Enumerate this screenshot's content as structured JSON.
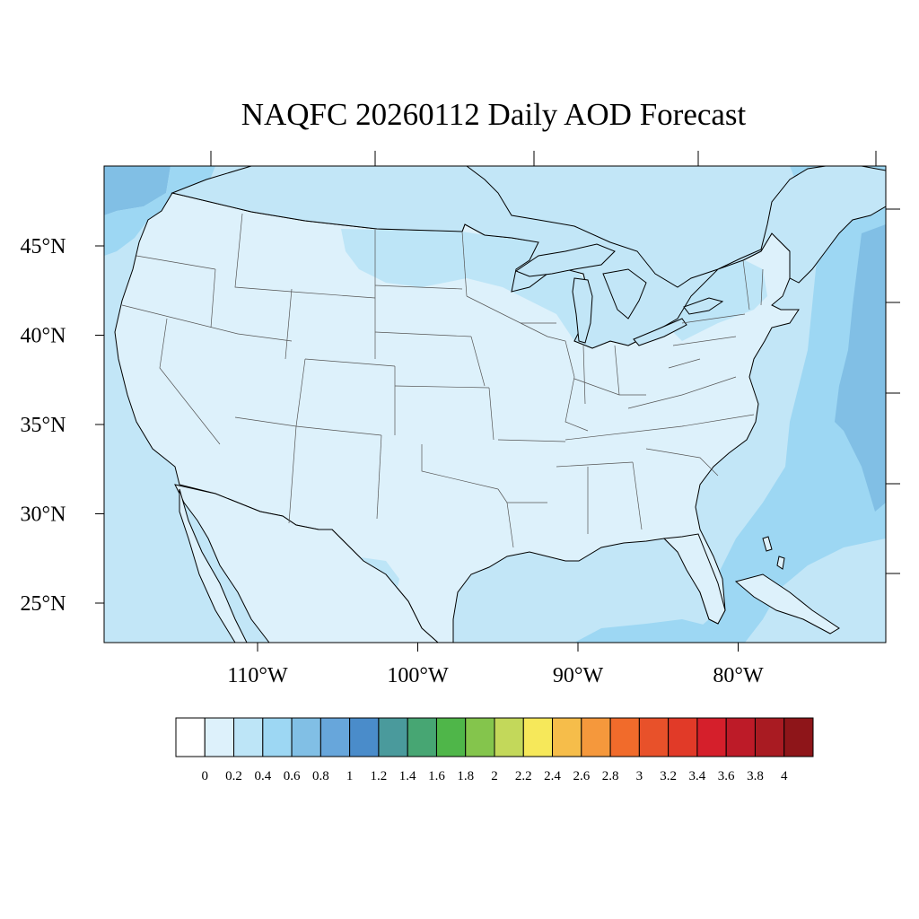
{
  "title": "NAQFC 20260112 Daily AOD Forecast",
  "colors": {
    "ocean_base": "#c2e6f7",
    "land_base": "#ddf1fb",
    "coast": "#000000",
    "state_border": "#555555"
  },
  "map": {
    "lat_labels": [
      {
        "lat": 45,
        "text": "45°N"
      },
      {
        "lat": 40,
        "text": "40°N"
      },
      {
        "lat": 35,
        "text": "35°N"
      },
      {
        "lat": 30,
        "text": "30°N"
      },
      {
        "lat": 25,
        "text": "25°N"
      }
    ],
    "lon_labels": [
      {
        "lon": -110,
        "text": "110°W"
      },
      {
        "lon": -100,
        "text": "100°W"
      },
      {
        "lon": -90,
        "text": "90°W"
      },
      {
        "lon": -80,
        "text": "80°W"
      }
    ]
  },
  "colorbar": {
    "colors": [
      "#ffffff",
      "#ddf1fb",
      "#bde5f7",
      "#9dd7f3",
      "#81bfe5",
      "#67a6db",
      "#4a8cca",
      "#4a9a9c",
      "#47a673",
      "#4fb649",
      "#84c54c",
      "#c3d85a",
      "#f6e85a",
      "#f6bd4a",
      "#f5983c",
      "#f16b2b",
      "#e8512a",
      "#e13a28",
      "#d51f2b",
      "#bd1b28",
      "#a91b22",
      "#8e1519"
    ],
    "labels": [
      "0",
      "0.2",
      "0.4",
      "0.6",
      "0.8",
      "1",
      "1.2",
      "1.4",
      "1.6",
      "1.8",
      "2",
      "2.2",
      "2.4",
      "2.6",
      "2.8",
      "3",
      "3.2",
      "3.4",
      "3.6",
      "3.8",
      "4"
    ]
  }
}
